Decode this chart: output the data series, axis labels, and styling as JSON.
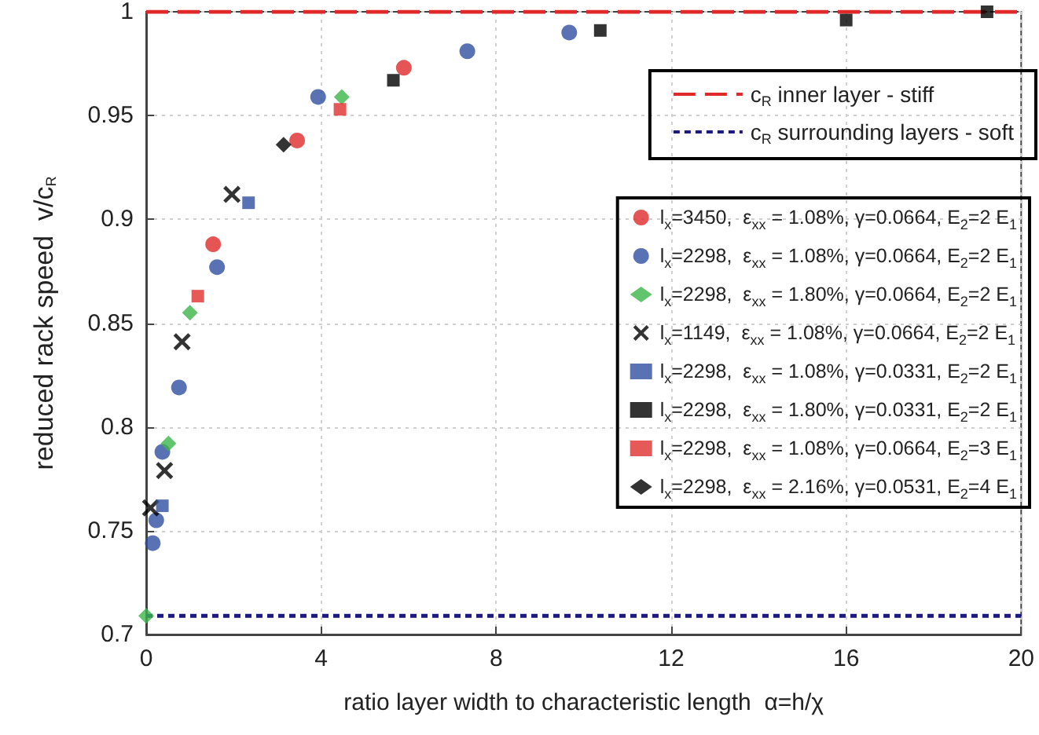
{
  "chart_data": {
    "type": "scatter",
    "xlabel": "ratio layer width to characteristic length  α=h/χ",
    "ylabel": "reduced rack speed  v/c$_{R}$",
    "xlim": [
      0,
      20
    ],
    "xticks": [
      0,
      4,
      8,
      12,
      16,
      20
    ],
    "ylim": [
      0.7,
      1
    ],
    "yticks": [
      0.7,
      0.75,
      0.8,
      0.85,
      0.9,
      0.95,
      1
    ],
    "grid": true,
    "legend": "right",
    "ref_lines": [
      {
        "axis": "y",
        "value": 1,
        "label": "c$_{R}$ inner layer - stiff",
        "color": "#e02a2a",
        "line_style": "dashed"
      },
      {
        "axis": "y",
        "value": 0.709,
        "label": "c$_{R}$ surrounding layers - soft",
        "color": "#1a1a80",
        "line_style": "dotted"
      }
    ],
    "series": [
      {
        "name": "l$_{x}$=3450,  ε$_{xx}$ = 1.08%, γ=0.0664, E$_{2}$=2 E$_{1}$",
        "color": "#e02a2a",
        "marker": "circle",
        "x": [
          1.53,
          3.45,
          5.89
        ],
        "values": [
          0.888,
          0.938,
          0.973
        ]
      },
      {
        "name": "l$_{x}$=2298,  ε$_{xx}$ = 1.08%, γ=0.0664, E$_{2}$=2 E$_{1}$",
        "color": "#2e4fa0",
        "marker": "circle",
        "x": [
          0.15,
          0.23,
          0.37,
          0.75,
          1.62,
          3.93,
          7.34,
          9.67
        ],
        "values": [
          0.744,
          0.755,
          0.788,
          0.819,
          0.877,
          0.959,
          0.981,
          0.99
        ]
      },
      {
        "name": "l$_{x}$=2298,  ε$_{xx}$ = 1.80%, γ=0.0664, E$_{2}$=2 E$_{1}$",
        "color": "#3cb54a",
        "marker": "diamond",
        "x": [
          0,
          0.51,
          1.0,
          4.47
        ],
        "values": [
          0.709,
          0.792,
          0.855,
          0.959
        ]
      },
      {
        "name": "l$_{x}$=1149,  ε$_{xx}$ = 1.08%, γ=0.0664, E$_{2}$=2 E$_{1}$",
        "color": "#000000",
        "marker": "cross",
        "x": [
          0.1,
          0.42,
          0.82,
          1.96
        ],
        "values": [
          0.761,
          0.779,
          0.841,
          0.912
        ]
      },
      {
        "name": "l$_{x}$=2298,  ε$_{xx}$ = 1.08%, γ=0.0331, E$_{2}$=2 E$_{1}$",
        "color": "#2e4fa0",
        "marker": "square",
        "x": [
          0.37,
          2.34
        ],
        "values": [
          0.762,
          0.908
        ]
      },
      {
        "name": "l$_{x}$=2298,  ε$_{xx}$ = 1.80%, γ=0.0331, E$_{2}$=2 E$_{1}$",
        "color": "#000000",
        "marker": "square",
        "x": [
          5.65,
          10.38,
          16.0,
          19.22
        ],
        "values": [
          0.967,
          0.991,
          0.996,
          1.0
        ]
      },
      {
        "name": "l$_{x}$=2298,  ε$_{xx}$ = 1.08%, γ=0.0664, E$_{2}$=3 E$_{1}$",
        "color": "#e03030",
        "marker": "square",
        "x": [
          1.18,
          4.43
        ],
        "values": [
          0.863,
          0.953
        ]
      },
      {
        "name": "l$_{x}$=2298,  ε$_{xx}$ = 2.16%, γ=0.0531, E$_{2}$=4 E$_{1}$",
        "color": "#000000",
        "marker": "diamond",
        "x": [
          3.14
        ],
        "values": [
          0.936
        ]
      }
    ]
  }
}
